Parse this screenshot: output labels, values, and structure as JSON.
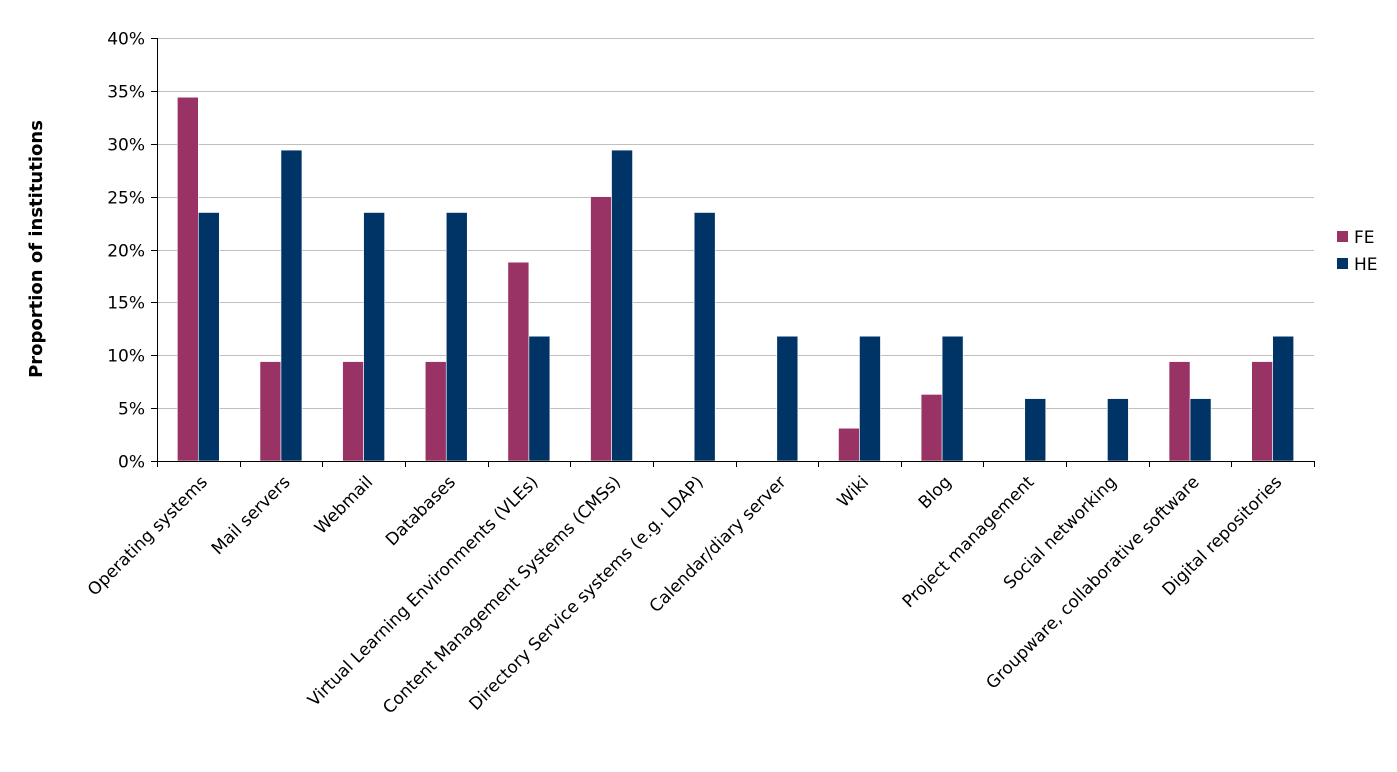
{
  "chart_data": {
    "type": "bar",
    "ylabel": "Proportion of institutions",
    "xlabel": "",
    "title": "",
    "ylim": [
      0,
      40
    ],
    "yticks": [
      0,
      5,
      10,
      15,
      20,
      25,
      30,
      35,
      40
    ],
    "ytick_labels": [
      "0%",
      "5%",
      "10%",
      "15%",
      "20%",
      "25%",
      "30%",
      "35%",
      "40%"
    ],
    "grid": true,
    "legend_position": "right",
    "categories": [
      "Operating systems",
      "Mail servers",
      "Webmail",
      "Databases",
      "Virtual Learning Environments (VLEs)",
      "Content Management Systems (CMSs)",
      "Directory Service systems (e.g. LDAP)",
      "Calendar/diary server",
      "Wiki",
      "Blog",
      "Project management",
      "Social networking",
      "Groupware, collaborative software",
      "Digital repositories"
    ],
    "series": [
      {
        "name": "FE",
        "color": "#993366",
        "values": [
          34.4,
          9.4,
          9.4,
          9.4,
          18.8,
          25.0,
          0,
          0,
          3.1,
          6.3,
          0,
          0,
          9.4,
          9.4
        ]
      },
      {
        "name": "HE",
        "color": "#003366",
        "values": [
          23.5,
          29.4,
          23.5,
          23.5,
          11.8,
          29.4,
          23.5,
          11.8,
          11.8,
          11.8,
          5.9,
          5.9,
          5.9,
          11.8
        ]
      }
    ]
  }
}
